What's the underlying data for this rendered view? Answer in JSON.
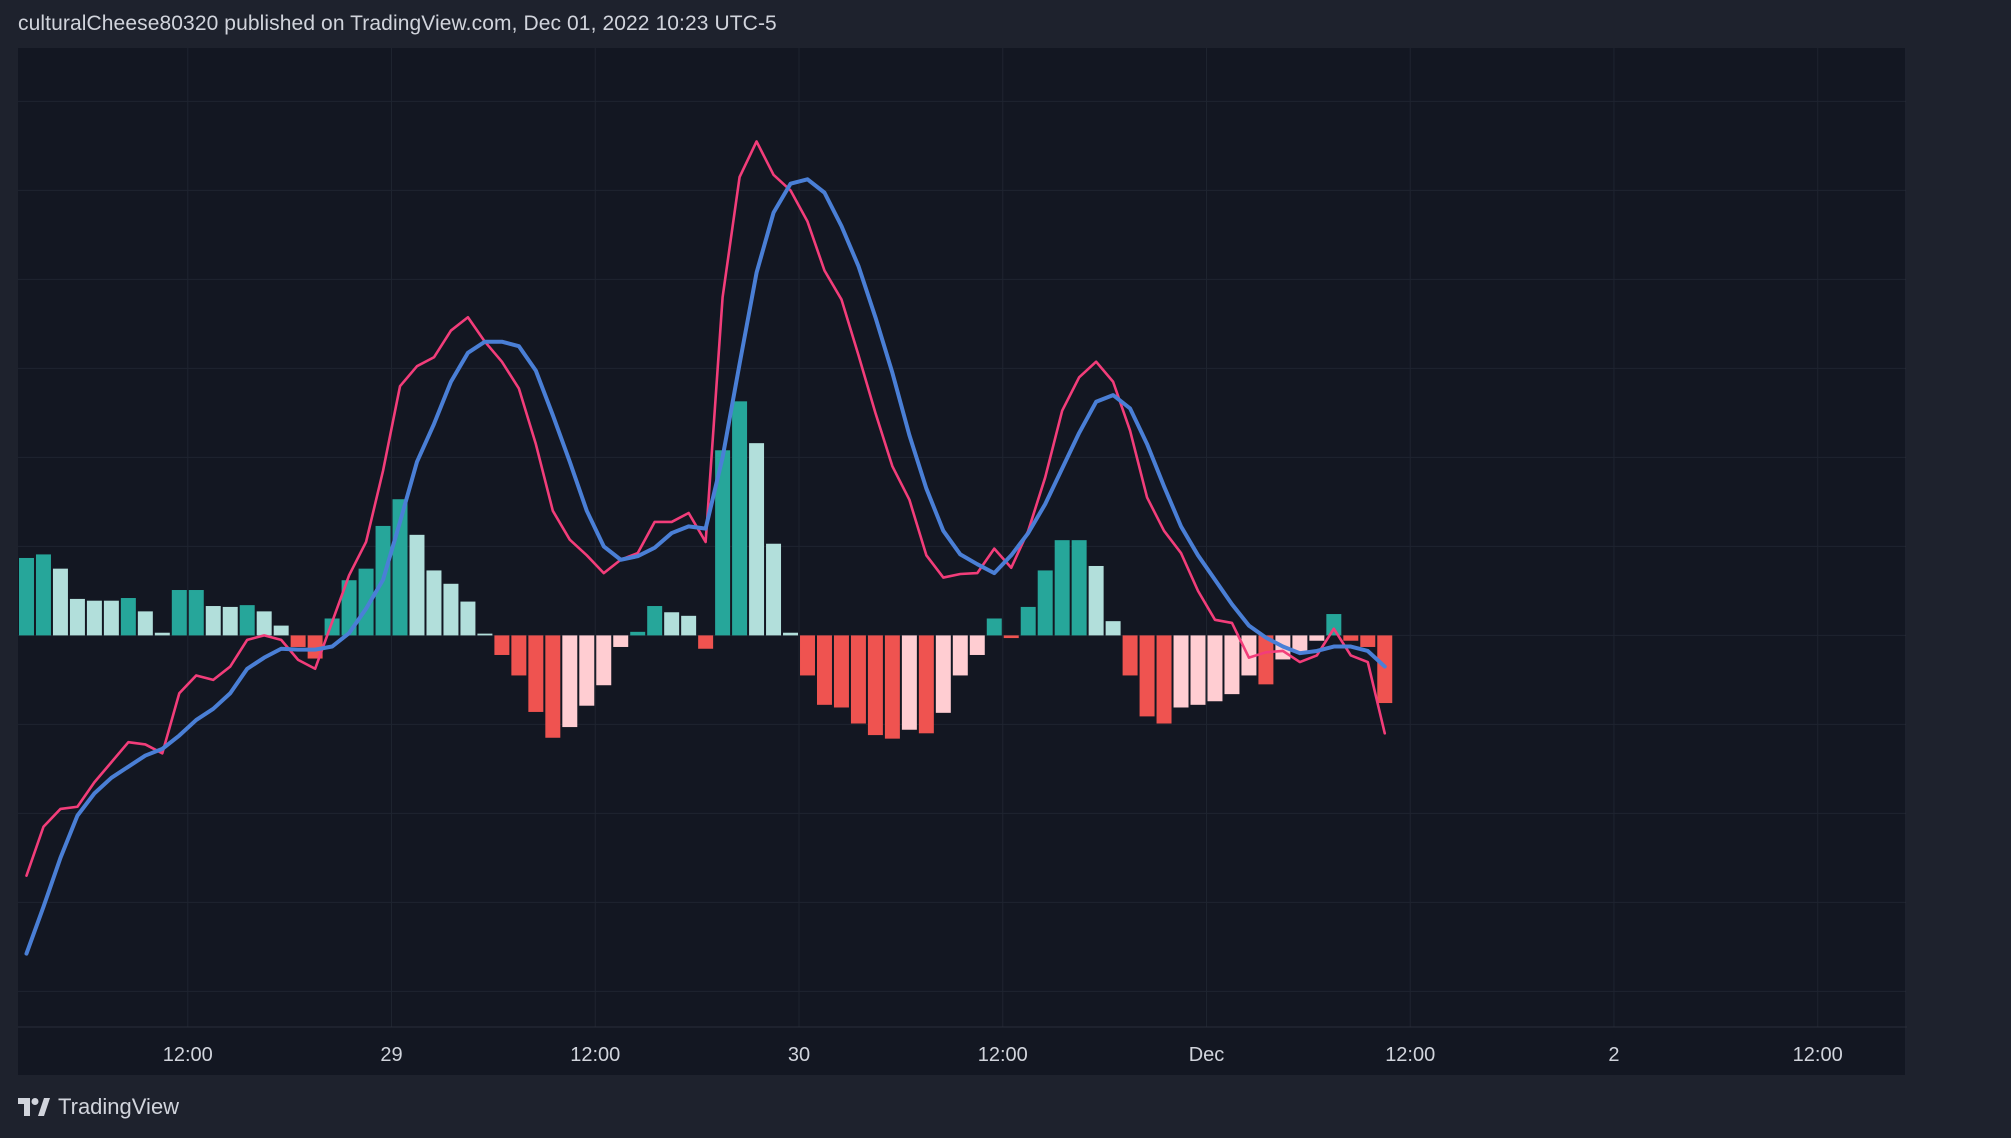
{
  "header": {
    "attribution": "culturalCheese80320 published on TradingView.com, Dec 01, 2022 10:23 UTC-5"
  },
  "footer": {
    "brand": "TradingView"
  },
  "colors": {
    "background": "#131722",
    "page_background": "#1e222d",
    "grid": "#1f2430",
    "axis_text": "#d1d4dc",
    "macd_line": "#4a7fd6",
    "signal_line": "#f23d7a",
    "hist_pos_rising": "#26a69a",
    "hist_pos_falling": "#b2dfdb",
    "hist_neg_falling": "#ef5350",
    "hist_neg_rising": "#ffcdd2"
  },
  "chart_data": {
    "type": "bar",
    "title": "",
    "xlabel": "",
    "ylabel": "",
    "ylim": [
      -8.8,
      13.2
    ],
    "y_ticks": [
      "12.00",
      "10.00",
      "8.00",
      "6.00",
      "4.00",
      "2.00",
      "0.00",
      "−2.00",
      "−4.00",
      "−6.00",
      "−8.00"
    ],
    "y_tick_values": [
      12,
      10,
      8,
      6,
      4,
      2,
      0,
      -2,
      -4,
      -6,
      -8
    ],
    "x_ticks": [
      {
        "label": "12:00",
        "bar": 10
      },
      {
        "label": "29",
        "bar": 22
      },
      {
        "label": "12:00",
        "bar": 34
      },
      {
        "label": "30",
        "bar": 46
      },
      {
        "label": "12:00",
        "bar": 58
      },
      {
        "label": "Dec",
        "bar": 70
      },
      {
        "label": "12:00",
        "bar": 82
      },
      {
        "label": "2",
        "bar": 94
      },
      {
        "label": "12:00",
        "bar": 106
      }
    ],
    "x_range_bars": [
      0,
      111.2
    ],
    "grid": true,
    "series": [
      {
        "name": "",
        "type": "histogram",
        "values": [
          1.74,
          1.82,
          1.5,
          0.82,
          0.78,
          0.78,
          0.84,
          0.54,
          0.06,
          1.02,
          1.02,
          0.66,
          0.64,
          0.68,
          0.54,
          0.22,
          -0.26,
          -0.52,
          0.38,
          1.24,
          1.5,
          2.46,
          3.06,
          2.26,
          1.46,
          1.16,
          0.76,
          0.04,
          -0.44,
          -0.9,
          -1.72,
          -2.3,
          -2.06,
          -1.58,
          -1.12,
          -0.26,
          0.08,
          0.66,
          0.52,
          0.44,
          -0.3,
          4.16,
          5.26,
          4.32,
          2.06,
          0.06,
          -0.9,
          -1.56,
          -1.62,
          -1.98,
          -2.24,
          -2.32,
          -2.12,
          -2.2,
          -1.74,
          -0.9,
          -0.44,
          0.38,
          -0.06,
          0.64,
          1.46,
          2.14,
          2.14,
          1.56,
          0.32,
          -0.9,
          -1.82,
          -1.98,
          -1.62,
          -1.56,
          -1.48,
          -1.32,
          -0.9,
          -1.1,
          -0.54,
          -0.36,
          -0.12,
          0.48,
          -0.12,
          -0.26,
          -1.52
        ],
        "colors": [
          "hist_pos_rising",
          "hist_pos_rising",
          "hist_pos_falling",
          "hist_pos_falling",
          "hist_pos_falling",
          "hist_pos_falling",
          "hist_pos_rising",
          "hist_pos_falling",
          "hist_pos_falling",
          "hist_pos_rising",
          "hist_pos_rising",
          "hist_pos_falling",
          "hist_pos_falling",
          "hist_pos_rising",
          "hist_pos_falling",
          "hist_pos_falling",
          "hist_neg_falling",
          "hist_neg_falling",
          "hist_pos_rising",
          "hist_pos_rising",
          "hist_pos_rising",
          "hist_pos_rising",
          "hist_pos_rising",
          "hist_pos_falling",
          "hist_pos_falling",
          "hist_pos_falling",
          "hist_pos_falling",
          "hist_pos_falling",
          "hist_neg_falling",
          "hist_neg_falling",
          "hist_neg_falling",
          "hist_neg_falling",
          "hist_neg_rising",
          "hist_neg_rising",
          "hist_neg_rising",
          "hist_neg_rising",
          "hist_pos_rising",
          "hist_pos_rising",
          "hist_pos_falling",
          "hist_pos_falling",
          "hist_neg_falling",
          "hist_pos_rising",
          "hist_pos_rising",
          "hist_pos_falling",
          "hist_pos_falling",
          "hist_pos_falling",
          "hist_neg_falling",
          "hist_neg_falling",
          "hist_neg_falling",
          "hist_neg_falling",
          "hist_neg_falling",
          "hist_neg_falling",
          "hist_neg_rising",
          "hist_neg_falling",
          "hist_neg_rising",
          "hist_neg_rising",
          "hist_neg_rising",
          "hist_pos_rising",
          "hist_neg_falling",
          "hist_pos_rising",
          "hist_pos_rising",
          "hist_pos_rising",
          "hist_pos_rising",
          "hist_pos_falling",
          "hist_pos_falling",
          "hist_neg_falling",
          "hist_neg_falling",
          "hist_neg_falling",
          "hist_neg_rising",
          "hist_neg_rising",
          "hist_neg_rising",
          "hist_neg_rising",
          "hist_neg_rising",
          "hist_neg_falling",
          "hist_neg_rising",
          "hist_neg_rising",
          "hist_neg_rising",
          "hist_pos_rising",
          "hist_neg_falling",
          "hist_neg_falling",
          "hist_neg_falling"
        ]
      },
      {
        "name": "",
        "type": "line",
        "color": "signal_line",
        "values": [
          -5.4,
          -4.3,
          -3.9,
          -3.85,
          -3.3,
          -2.85,
          -2.4,
          -2.45,
          -2.65,
          -1.3,
          -0.9,
          -1.0,
          -0.7,
          -0.1,
          0.0,
          -0.1,
          -0.55,
          -0.75,
          0.3,
          1.35,
          2.1,
          3.7,
          5.6,
          6.05,
          6.25,
          6.85,
          7.15,
          6.6,
          6.15,
          5.55,
          4.3,
          2.8,
          2.15,
          1.8,
          1.4,
          1.7,
          1.85,
          2.55,
          2.55,
          2.75,
          2.1,
          7.6,
          10.3,
          11.1,
          10.35,
          10.0,
          9.3,
          8.2,
          7.55,
          6.3,
          5.0,
          3.8,
          3.05,
          1.8,
          1.3,
          1.38,
          1.4,
          1.95,
          1.52,
          2.35,
          3.55,
          5.05,
          5.8,
          6.15,
          5.7,
          4.6,
          3.1,
          2.35,
          1.85,
          1.0,
          0.35,
          0.28,
          -0.5,
          -0.38,
          -0.35,
          -0.6,
          -0.45,
          0.15,
          -0.45,
          -0.6,
          -2.2
        ]
      },
      {
        "name": "",
        "type": "line",
        "color": "macd_line",
        "values": [
          -7.15,
          -6.1,
          -5.0,
          -4.05,
          -3.55,
          -3.2,
          -2.95,
          -2.7,
          -2.55,
          -2.25,
          -1.9,
          -1.65,
          -1.3,
          -0.75,
          -0.5,
          -0.3,
          -0.32,
          -0.32,
          -0.25,
          0.05,
          0.6,
          1.25,
          2.55,
          3.9,
          4.75,
          5.7,
          6.35,
          6.6,
          6.6,
          6.5,
          5.95,
          4.95,
          3.9,
          2.8,
          2.0,
          1.7,
          1.78,
          1.97,
          2.3,
          2.45,
          2.4,
          4.0,
          6.1,
          8.15,
          9.5,
          10.15,
          10.25,
          9.95,
          9.2,
          8.3,
          7.15,
          5.9,
          4.5,
          3.3,
          2.35,
          1.82,
          1.6,
          1.4,
          1.8,
          2.3,
          2.95,
          3.75,
          4.55,
          5.25,
          5.4,
          5.1,
          4.3,
          3.35,
          2.45,
          1.8,
          1.25,
          0.7,
          0.22,
          -0.05,
          -0.25,
          -0.4,
          -0.35,
          -0.25,
          -0.25,
          -0.35,
          -0.7
        ]
      }
    ]
  }
}
